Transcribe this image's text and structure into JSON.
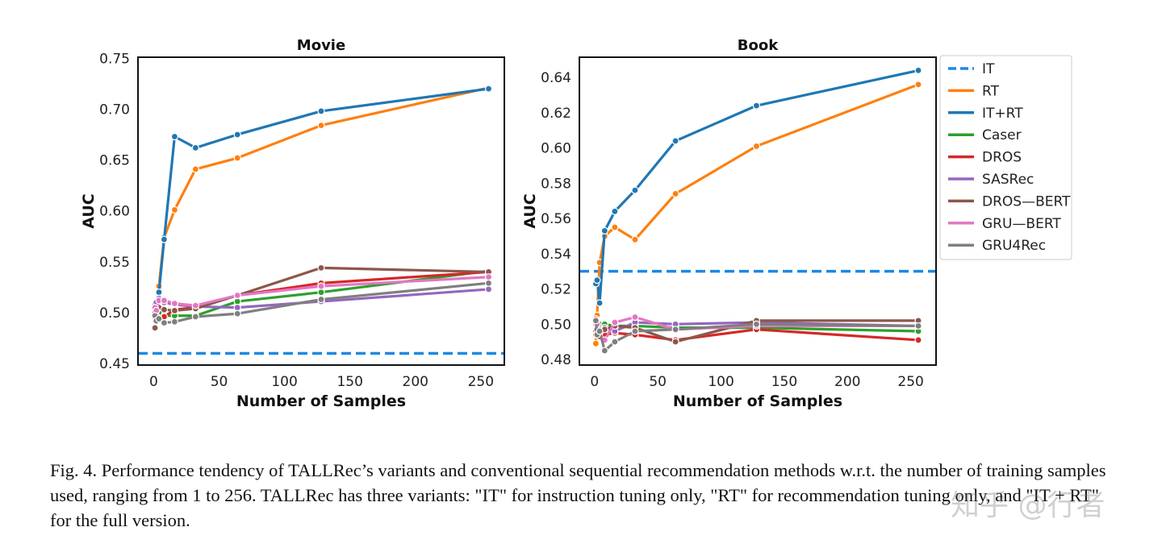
{
  "chart_data": [
    {
      "type": "line",
      "title": "Movie",
      "xlabel": "Number of Samples",
      "ylabel": "AUC",
      "xlim": [
        -12,
        268
      ],
      "ylim": [
        0.4485,
        0.751
      ],
      "xticks": [
        0,
        50,
        100,
        150,
        200,
        250
      ],
      "yticks": [
        0.45,
        0.5,
        0.55,
        0.6,
        0.65,
        0.7,
        0.75
      ],
      "ytick_labels": [
        "0.45",
        "0.50",
        "0.55",
        "0.60",
        "0.65",
        "0.70",
        "0.75"
      ],
      "grid": false,
      "x": [
        1,
        2,
        4,
        8,
        16,
        32,
        64,
        128,
        256
      ],
      "series": [
        {
          "name": "IT",
          "color": "#1e88e5",
          "dashed": true,
          "hline": 0.46
        },
        {
          "name": "RT",
          "color": "#ff7f0e",
          "values": [
            0.503,
            0.508,
            0.526,
            0.574,
            0.601,
            0.641,
            0.652,
            0.684,
            0.721
          ]
        },
        {
          "name": "IT+RT",
          "color": "#1f77b4",
          "values": [
            0.5,
            0.505,
            0.52,
            0.572,
            0.673,
            0.662,
            0.675,
            0.698,
            0.72
          ]
        },
        {
          "name": "Caser",
          "color": "#2ca02c",
          "values": [
            0.495,
            0.498,
            0.5,
            0.497,
            0.497,
            0.497,
            0.511,
            0.52,
            0.541
          ]
        },
        {
          "name": "DROS",
          "color": "#d62728",
          "values": [
            0.5,
            0.497,
            0.493,
            0.496,
            0.503,
            0.505,
            0.517,
            0.529,
            0.54
          ]
        },
        {
          "name": "SASRec",
          "color": "#9467bd",
          "values": [
            0.508,
            0.51,
            0.514,
            0.51,
            0.508,
            0.506,
            0.505,
            0.511,
            0.523
          ]
        },
        {
          "name": "DROS—BERT",
          "color": "#8c564b",
          "values": [
            0.485,
            0.495,
            0.505,
            0.503,
            0.502,
            0.504,
            0.517,
            0.544,
            0.54
          ]
        },
        {
          "name": "GRU—BERT",
          "color": "#e377c2",
          "values": [
            0.505,
            0.502,
            0.512,
            0.512,
            0.509,
            0.507,
            0.517,
            0.526,
            0.535
          ]
        },
        {
          "name": "GRU4Rec",
          "color": "#7f7f7f",
          "values": [
            0.497,
            0.492,
            0.494,
            0.49,
            0.491,
            0.496,
            0.499,
            0.513,
            0.529
          ]
        }
      ]
    },
    {
      "type": "line",
      "title": "Book",
      "xlabel": "Number of Samples",
      "ylabel": "AUC",
      "xlim": [
        -12,
        270
      ],
      "ylim": [
        0.4768,
        0.6515
      ],
      "xticks": [
        0,
        50,
        100,
        150,
        200,
        250
      ],
      "yticks": [
        0.48,
        0.5,
        0.52,
        0.54,
        0.56,
        0.58,
        0.6,
        0.62,
        0.64
      ],
      "ytick_labels": [
        "0.48",
        "0.50",
        "0.52",
        "0.54",
        "0.56",
        "0.58",
        "0.60",
        "0.62",
        "0.64"
      ],
      "grid": false,
      "legend": "outside-right",
      "x": [
        1,
        2,
        4,
        8,
        16,
        32,
        64,
        128,
        256
      ],
      "series": [
        {
          "name": "IT",
          "color": "#1e88e5",
          "dashed": true,
          "hline": 0.53
        },
        {
          "name": "RT",
          "color": "#ff7f0e",
          "values": [
            0.489,
            0.505,
            0.535,
            0.55,
            0.555,
            0.548,
            0.574,
            0.601,
            0.636
          ]
        },
        {
          "name": "IT+RT",
          "color": "#1f77b4",
          "values": [
            0.523,
            0.525,
            0.512,
            0.553,
            0.564,
            0.576,
            0.604,
            0.624,
            0.644
          ]
        },
        {
          "name": "Caser",
          "color": "#2ca02c",
          "values": [
            0.497,
            0.5,
            0.5,
            0.5,
            0.499,
            0.499,
            0.498,
            0.498,
            0.496
          ]
        },
        {
          "name": "DROS",
          "color": "#d62728",
          "values": [
            0.496,
            0.494,
            0.493,
            0.494,
            0.495,
            0.494,
            0.491,
            0.497,
            0.491
          ]
        },
        {
          "name": "SASRec",
          "color": "#9467bd",
          "values": [
            0.5,
            0.498,
            0.497,
            0.498,
            0.496,
            0.501,
            0.5,
            0.501,
            0.499
          ]
        },
        {
          "name": "DROS—BERT",
          "color": "#8c564b",
          "values": [
            0.494,
            0.497,
            0.496,
            0.497,
            0.499,
            0.498,
            0.49,
            0.502,
            0.502
          ]
        },
        {
          "name": "GRU—BERT",
          "color": "#e377c2",
          "values": [
            0.503,
            0.5,
            0.495,
            0.491,
            0.501,
            0.504,
            0.497,
            0.499,
            0.499
          ]
        },
        {
          "name": "GRU4Rec",
          "color": "#7f7f7f",
          "values": [
            0.502,
            0.494,
            0.496,
            0.485,
            0.49,
            0.496,
            0.497,
            0.5,
            0.499
          ]
        }
      ]
    }
  ],
  "caption": "Fig. 4.  Performance tendency of TALLRec’s variants and conventional sequential recommendation methods w.r.t. the number of training samples used, ranging from 1 to 256. TALLRec has three variants: \"IT\" for instruction tuning only, \"RT\" for recommendation tuning only, and \"IT + RT\" for the full version.",
  "watermark": "知乎 @行者"
}
